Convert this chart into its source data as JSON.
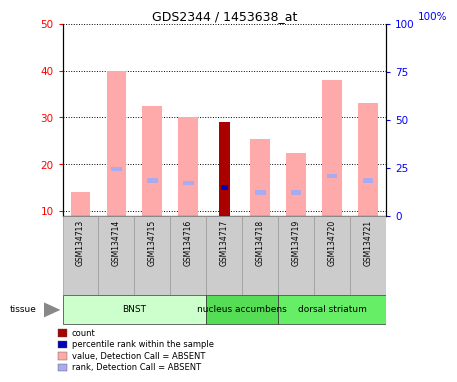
{
  "title": "GDS2344 / 1453638_at",
  "samples": [
    "GSM134713",
    "GSM134714",
    "GSM134715",
    "GSM134716",
    "GSM134717",
    "GSM134718",
    "GSM134719",
    "GSM134720",
    "GSM134721"
  ],
  "value_absent": [
    14,
    40,
    32.5,
    30,
    0,
    25.5,
    22.5,
    38,
    33
  ],
  "rank_absent": [
    0,
    19,
    16.5,
    16,
    0,
    14,
    14,
    17.5,
    16.5
  ],
  "count_value": [
    0,
    0,
    0,
    0,
    29,
    0,
    0,
    0,
    0
  ],
  "pct_rank_value": [
    0,
    0,
    0,
    0,
    15,
    0,
    0,
    0,
    0
  ],
  "ylim_left": [
    9,
    50
  ],
  "ylim_right": [
    0,
    100
  ],
  "yticks_left": [
    10,
    20,
    30,
    40,
    50
  ],
  "yticks_right": [
    0,
    25,
    50,
    75,
    100
  ],
  "tissue_groups": [
    {
      "label": "BNST",
      "start": 0,
      "end": 4
    },
    {
      "label": "nucleus accumbens",
      "start": 4,
      "end": 6
    },
    {
      "label": "dorsal striatum",
      "start": 6,
      "end": 9
    }
  ],
  "tissue_colors": [
    "#ccffcc",
    "#55dd55",
    "#66ee66"
  ],
  "color_value_absent": "#ffaaaa",
  "color_rank_absent": "#aaaaee",
  "color_count": "#aa0000",
  "color_pct_rank": "#0000bb",
  "legend_items": [
    [
      "#aa0000",
      "count"
    ],
    [
      "#0000bb",
      "percentile rank within the sample"
    ],
    [
      "#ffaaaa",
      "value, Detection Call = ABSENT"
    ],
    [
      "#aaaaee",
      "rank, Detection Call = ABSENT"
    ]
  ]
}
